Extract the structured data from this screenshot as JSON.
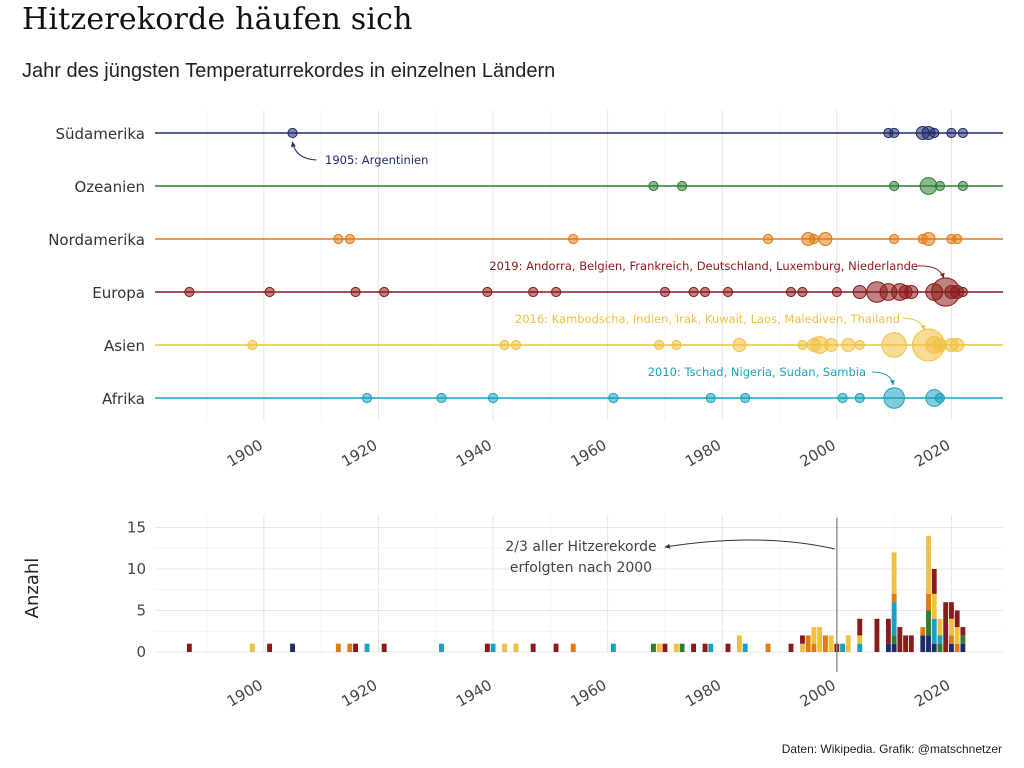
{
  "header": {
    "title": "Hitzerekorde häufen sich",
    "subtitle": "Jahr des jüngsten Temperaturrekordes in einzelnen Ländern",
    "caption": "Daten: Wikipedia. Grafik: @matschnetzer"
  },
  "chart_data": [
    {
      "type": "scatter",
      "title": "",
      "xlabel": "",
      "ylabel": "",
      "xlim": [
        1881,
        2029
      ],
      "xticks": [
        1900,
        1920,
        1940,
        1960,
        1980,
        2000,
        2020
      ],
      "categories": [
        "Südamerika",
        "Ozeanien",
        "Nordamerika",
        "Europa",
        "Asien",
        "Afrika"
      ],
      "grid": true,
      "colors": {
        "Südamerika": "#1f2a6b",
        "Ozeanien": "#2e7d32",
        "Nordamerika": "#e07b10",
        "Europa": "#8b1a1a",
        "Asien": "#f0c040",
        "Afrika": "#1aa0c0"
      },
      "series": [
        {
          "name": "Südamerika",
          "points": [
            {
              "x": 1905,
              "n": 1
            },
            {
              "x": 2009,
              "n": 1
            },
            {
              "x": 2010,
              "n": 1
            },
            {
              "x": 2015,
              "n": 2
            },
            {
              "x": 2016,
              "n": 2
            },
            {
              "x": 2017,
              "n": 1
            },
            {
              "x": 2020,
              "n": 1
            },
            {
              "x": 2022,
              "n": 1
            }
          ]
        },
        {
          "name": "Ozeanien",
          "points": [
            {
              "x": 1968,
              "n": 1
            },
            {
              "x": 1973,
              "n": 1
            },
            {
              "x": 2010,
              "n": 1
            },
            {
              "x": 2016,
              "n": 3
            },
            {
              "x": 2018,
              "n": 1
            },
            {
              "x": 2022,
              "n": 1
            }
          ]
        },
        {
          "name": "Nordamerika",
          "points": [
            {
              "x": 1913,
              "n": 1
            },
            {
              "x": 1915,
              "n": 1
            },
            {
              "x": 1954,
              "n": 1
            },
            {
              "x": 1988,
              "n": 1
            },
            {
              "x": 1995,
              "n": 2
            },
            {
              "x": 1996,
              "n": 1
            },
            {
              "x": 1998,
              "n": 2
            },
            {
              "x": 2010,
              "n": 1
            },
            {
              "x": 2015,
              "n": 1
            },
            {
              "x": 2016,
              "n": 2
            },
            {
              "x": 2020,
              "n": 1
            },
            {
              "x": 2021,
              "n": 1
            }
          ]
        },
        {
          "name": "Europa",
          "points": [
            {
              "x": 1887,
              "n": 1
            },
            {
              "x": 1901,
              "n": 1
            },
            {
              "x": 1916,
              "n": 1
            },
            {
              "x": 1921,
              "n": 1
            },
            {
              "x": 1939,
              "n": 1
            },
            {
              "x": 1947,
              "n": 1
            },
            {
              "x": 1951,
              "n": 1
            },
            {
              "x": 1970,
              "n": 1
            },
            {
              "x": 1975,
              "n": 1
            },
            {
              "x": 1977,
              "n": 1
            },
            {
              "x": 1981,
              "n": 1
            },
            {
              "x": 1992,
              "n": 1
            },
            {
              "x": 1994,
              "n": 1
            },
            {
              "x": 2000,
              "n": 1
            },
            {
              "x": 2004,
              "n": 2
            },
            {
              "x": 2007,
              "n": 4
            },
            {
              "x": 2009,
              "n": 3
            },
            {
              "x": 2011,
              "n": 3
            },
            {
              "x": 2012,
              "n": 2
            },
            {
              "x": 2013,
              "n": 2
            },
            {
              "x": 2017,
              "n": 3
            },
            {
              "x": 2019,
              "n": 6
            },
            {
              "x": 2020,
              "n": 2
            },
            {
              "x": 2021,
              "n": 2
            },
            {
              "x": 2022,
              "n": 1
            }
          ]
        },
        {
          "name": "Asien",
          "points": [
            {
              "x": 1898,
              "n": 1
            },
            {
              "x": 1942,
              "n": 1
            },
            {
              "x": 1944,
              "n": 1
            },
            {
              "x": 1969,
              "n": 1
            },
            {
              "x": 1972,
              "n": 1
            },
            {
              "x": 1983,
              "n": 2
            },
            {
              "x": 1994,
              "n": 1
            },
            {
              "x": 1996,
              "n": 2
            },
            {
              "x": 1997,
              "n": 3
            },
            {
              "x": 1999,
              "n": 2
            },
            {
              "x": 2002,
              "n": 2
            },
            {
              "x": 2004,
              "n": 1
            },
            {
              "x": 2010,
              "n": 5
            },
            {
              "x": 2016,
              "n": 7
            },
            {
              "x": 2017,
              "n": 3
            },
            {
              "x": 2018,
              "n": 2
            },
            {
              "x": 2020,
              "n": 2
            },
            {
              "x": 2021,
              "n": 2
            }
          ]
        },
        {
          "name": "Afrika",
          "points": [
            {
              "x": 1918,
              "n": 1
            },
            {
              "x": 1931,
              "n": 1
            },
            {
              "x": 1940,
              "n": 1
            },
            {
              "x": 1961,
              "n": 1
            },
            {
              "x": 1978,
              "n": 1
            },
            {
              "x": 1984,
              "n": 1
            },
            {
              "x": 2001,
              "n": 1
            },
            {
              "x": 2004,
              "n": 1
            },
            {
              "x": 2010,
              "n": 4
            },
            {
              "x": 2017,
              "n": 3
            },
            {
              "x": 2018,
              "n": 1
            }
          ]
        }
      ],
      "annotations": [
        {
          "text": "1905: Argentinien",
          "series": "Südamerika",
          "x": 1905
        },
        {
          "text": "2019: Andorra, Belgien, Frankreich, Deutschland, Luxemburg, Niederlande",
          "series": "Europa",
          "x": 2019
        },
        {
          "text": "2016: Kambodscha, Indien, Irak, Kuwait, Laos, Malediven, Thailand",
          "series": "Asien",
          "x": 2016
        },
        {
          "text": "2010: Tschad, Nigeria, Sudan, Sambia",
          "series": "Afrika",
          "x": 2010
        }
      ]
    },
    {
      "type": "bar",
      "stacked": true,
      "title": "",
      "xlabel": "",
      "ylabel": "Anzahl",
      "xlim": [
        1881,
        2029
      ],
      "ylim": [
        0,
        16.5
      ],
      "xticks": [
        1900,
        1920,
        1940,
        1960,
        1980,
        2000,
        2020
      ],
      "yticks": [
        0,
        5,
        10,
        15
      ],
      "grid": true,
      "note": "derived from the scatter data above, stacked by continent",
      "reference_line": {
        "x": 2000
      },
      "annotation": {
        "line1": "2/3 aller Hitzerekorde",
        "line2": "erfolgten nach 2000"
      }
    }
  ]
}
